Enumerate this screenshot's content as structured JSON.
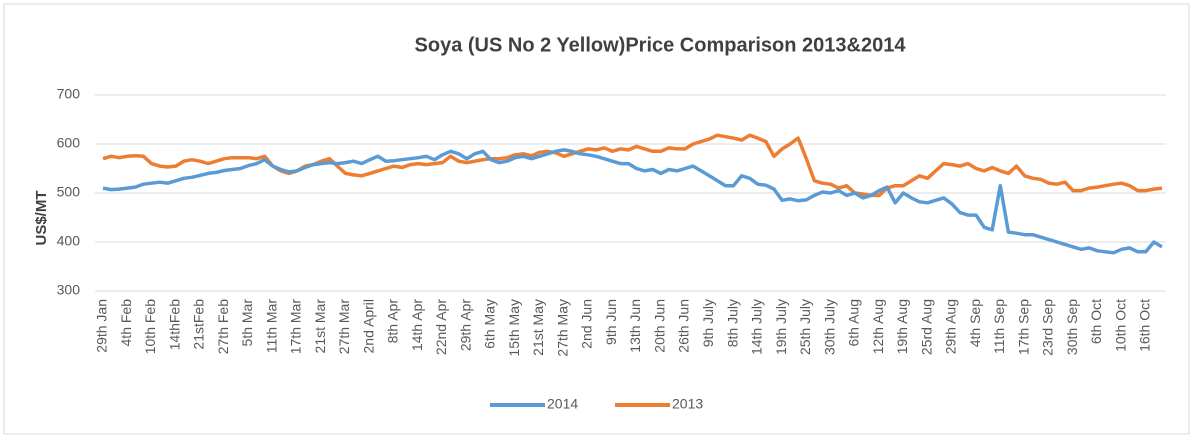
{
  "chart_data": {
    "type": "line",
    "title": "Soya (US No 2 Yellow)Price Comparison 2013&2014",
    "y_label": "US$/MT",
    "categories": [
      "29th Jan",
      null,
      null,
      "4th Feb",
      null,
      null,
      "10th Feb",
      null,
      null,
      "14thFeb",
      null,
      null,
      "21stFeb",
      null,
      null,
      "27th Feb",
      null,
      null,
      "5th Mar",
      null,
      null,
      "11th Mar",
      null,
      null,
      "17th Mar",
      null,
      null,
      "21st Mar",
      null,
      null,
      "27th Mar",
      null,
      null,
      "2nd April",
      null,
      null,
      "8th Apr",
      null,
      null,
      "14th Apr",
      null,
      null,
      "22nd Apr",
      null,
      null,
      "29th Apr",
      null,
      null,
      "6th May",
      null,
      null,
      "15th May",
      null,
      null,
      "21st May",
      null,
      null,
      "27th May",
      null,
      null,
      "2nd Jun",
      null,
      null,
      "9th Jun",
      null,
      null,
      "13th Jun",
      null,
      null,
      "20th Jun",
      null,
      null,
      "26th Jun",
      null,
      null,
      "9th July",
      null,
      null,
      "8th July",
      null,
      null,
      "14th July",
      null,
      null,
      "19th July",
      null,
      null,
      "25th July",
      null,
      null,
      "30th July",
      null,
      null,
      "6th Aug",
      null,
      null,
      "12th Aug",
      null,
      null,
      "19th Aug",
      null,
      null,
      "25rd Aug",
      null,
      null,
      "29th Aug",
      null,
      null,
      "4th Sep",
      null,
      null,
      "11th Sep",
      null,
      null,
      "17th Sep",
      null,
      null,
      "23rd Sep",
      null,
      null,
      "30th Sep",
      null,
      null,
      "6th Oct",
      null,
      null,
      "10th Oct",
      null,
      null,
      "16th Oct",
      null,
      null
    ],
    "series": [
      {
        "name": "2014",
        "color": "#5b9bd5",
        "values": [
          510,
          507,
          508,
          510,
          512,
          518,
          520,
          522,
          520,
          525,
          530,
          532,
          536,
          540,
          542,
          546,
          548,
          550,
          556,
          560,
          568,
          555,
          548,
          543,
          545,
          552,
          558,
          560,
          562,
          560,
          562,
          565,
          560,
          568,
          575,
          565,
          566,
          568,
          570,
          572,
          575,
          568,
          578,
          585,
          580,
          570,
          580,
          585,
          568,
          562,
          565,
          572,
          575,
          570,
          575,
          580,
          585,
          588,
          585,
          580,
          578,
          575,
          570,
          565,
          560,
          560,
          550,
          545,
          548,
          540,
          548,
          545,
          550,
          555,
          545,
          535,
          525,
          515,
          515,
          535,
          530,
          518,
          516,
          508,
          485,
          488,
          484,
          486,
          495,
          502,
          500,
          505,
          495,
          500,
          490,
          495,
          505,
          512,
          480,
          500,
          490,
          482,
          480,
          485,
          490,
          478,
          460,
          455,
          455,
          430,
          425,
          515,
          420,
          418,
          415,
          415,
          410,
          405,
          400,
          395,
          390,
          385,
          388,
          382,
          380,
          378,
          385,
          388,
          380,
          380,
          400,
          390
        ]
      },
      {
        "name": "2013",
        "color": "#ed7d31",
        "values": [
          570,
          575,
          572,
          575,
          576,
          575,
          560,
          555,
          553,
          555,
          565,
          568,
          565,
          560,
          565,
          570,
          572,
          572,
          572,
          570,
          575,
          555,
          545,
          540,
          545,
          555,
          558,
          565,
          570,
          555,
          540,
          537,
          535,
          540,
          545,
          550,
          555,
          552,
          558,
          560,
          558,
          560,
          562,
          575,
          565,
          562,
          565,
          568,
          570,
          570,
          572,
          578,
          580,
          576,
          583,
          585,
          582,
          575,
          580,
          585,
          590,
          588,
          592,
          585,
          590,
          588,
          595,
          590,
          585,
          585,
          592,
          590,
          590,
          600,
          605,
          610,
          618,
          615,
          612,
          608,
          618,
          612,
          605,
          575,
          590,
          600,
          612,
          570,
          525,
          520,
          518,
          510,
          515,
          500,
          498,
          495,
          495,
          510,
          515,
          515,
          525,
          535,
          530,
          545,
          560,
          558,
          555,
          560,
          550,
          545,
          552,
          545,
          540,
          555,
          535,
          530,
          528,
          520,
          518,
          522,
          505,
          505,
          510,
          512,
          515,
          518,
          520,
          515,
          505,
          505,
          508,
          510
        ]
      }
    ],
    "ylim": [
      300,
      700
    ],
    "yticks": [
      300,
      400,
      500,
      600,
      700
    ],
    "grid": true
  }
}
